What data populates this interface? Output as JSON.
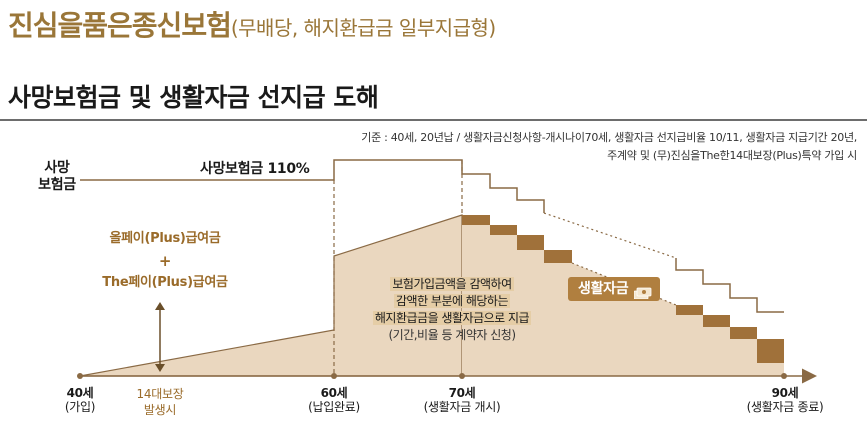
{
  "header": {
    "title": "진심을품은종신보험",
    "subtitle": "(무배당, 해지환급금 일부지급형)"
  },
  "section": {
    "title": "사망보험금 및 생활자금 선지급 도해"
  },
  "criteria": {
    "line1": "기준 : 40세, 20년납 / 생활자금신청사항-개시나이70세, 생활자금 선지급비율 10/11, 생활자금 지급기간 20년,",
    "line2": "주계약 및 (무)진심을The한14대보장(Plus)특약 가입 시"
  },
  "diagram": {
    "y_axis_label_line1": "사망",
    "y_axis_label_line2": "보험금",
    "death_benefit_label": "사망보험금 110%",
    "bonus": {
      "line1": "올페이(Plus)급여금",
      "plus": "+",
      "line2": "The페이(Plus)급여금"
    },
    "note": {
      "line1": "보험가입금액을 감액하여",
      "line2": "감액한 부분에 해당하는",
      "line3": "해지환급금을 생활자금으로 지급",
      "line4": "(기간,비율 등 계약자 신청)"
    },
    "badge_label": "생활자금",
    "event": {
      "line1": "14대보장",
      "line2": "발생시"
    },
    "ticks": [
      {
        "age": "40세",
        "desc": "(가입)"
      },
      {
        "age": "60세",
        "desc": "(납입완료)"
      },
      {
        "age": "70세",
        "desc": "(생활자금 개시)"
      },
      {
        "age": "90세",
        "desc": "(생활자금 종료)"
      }
    ]
  },
  "colors": {
    "brand": "#9a7638",
    "fill_light": "#ead7bf",
    "step_dark": "#a0713a",
    "line": "#8a6a45"
  }
}
